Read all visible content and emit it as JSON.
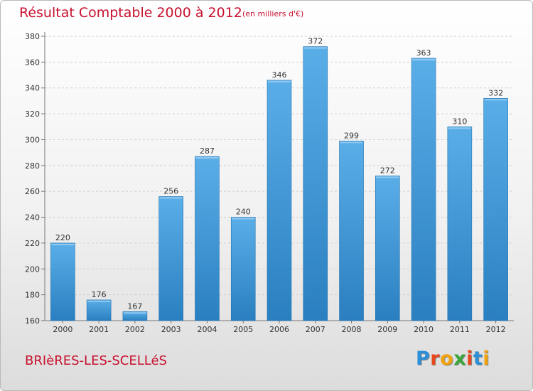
{
  "chart_data": {
    "type": "bar",
    "title": "Résultat Comptable 2000 à 2012",
    "subtitle": "(en milliers d'€)",
    "categories": [
      "2000",
      "2001",
      "2002",
      "2003",
      "2004",
      "2005",
      "2006",
      "2007",
      "2008",
      "2009",
      "2010",
      "2011",
      "2012"
    ],
    "values": [
      220,
      176,
      167,
      256,
      287,
      240,
      346,
      372,
      299,
      272,
      363,
      310,
      332
    ],
    "ylim": [
      160,
      380
    ],
    "yticks": [
      160,
      180,
      200,
      220,
      240,
      260,
      280,
      300,
      320,
      340,
      360,
      380
    ],
    "xlabel": "",
    "ylabel": "",
    "grid": true,
    "bar_color": "#2e86c8"
  },
  "footer": {
    "place_name": "BRIèRES-LES-SCELLéS"
  },
  "logo": {
    "letters": [
      "P",
      "r",
      "o",
      "x",
      "i",
      "t",
      "i"
    ],
    "colors": [
      "#2a8fd6",
      "#e8481b",
      "#f2a20c",
      "#3aa63a",
      "#e8481b",
      "#2a8fd6",
      "#f2a20c"
    ]
  }
}
